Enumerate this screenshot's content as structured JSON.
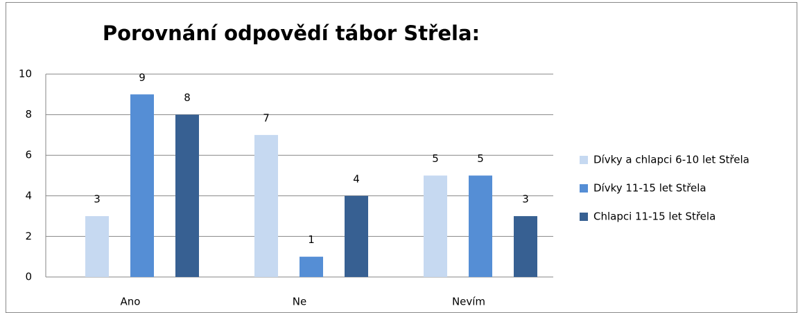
{
  "chart_data": {
    "type": "bar",
    "title": "Porovnání odpovědí tábor Střela:",
    "categories": [
      "Ano",
      "Ne",
      "Nevím"
    ],
    "series": [
      {
        "name": "Dívky a chlapci 6-10 let Střela",
        "color": "#c6d9f1",
        "values": [
          3,
          7,
          5
        ]
      },
      {
        "name": "Dívky 11-15 let Střela",
        "color": "#558ed5",
        "values": [
          9,
          1,
          5
        ]
      },
      {
        "name": "Chlapci 11-15 let Střela",
        "color": "#376092",
        "values": [
          8,
          4,
          3
        ]
      }
    ],
    "ylim": [
      0,
      10
    ],
    "yticks": [
      0,
      2,
      4,
      6,
      8,
      10
    ],
    "grid": true,
    "legend": "right"
  }
}
